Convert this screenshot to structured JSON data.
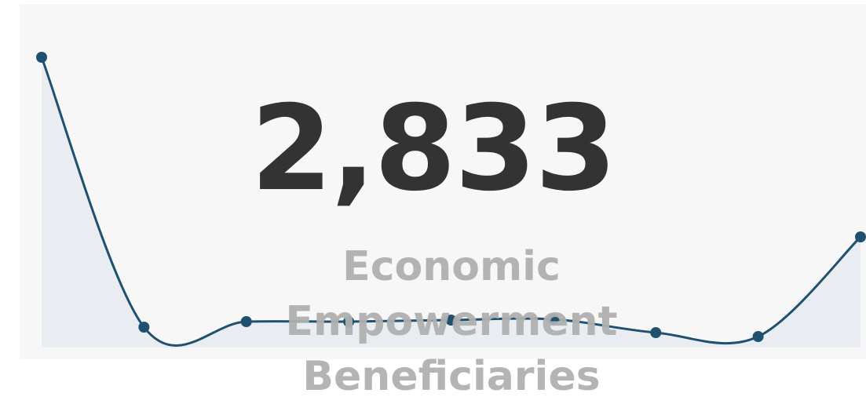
{
  "chart_data": {
    "type": "line",
    "values": [
      370,
      26,
      33,
      33,
      35,
      36,
      19,
      14,
      141
    ],
    "color": "#1f5070",
    "area_color": "#e9edf1"
  },
  "kpi": {
    "value": "2,833",
    "label": "Economic Empowerment Beneficiaries"
  }
}
